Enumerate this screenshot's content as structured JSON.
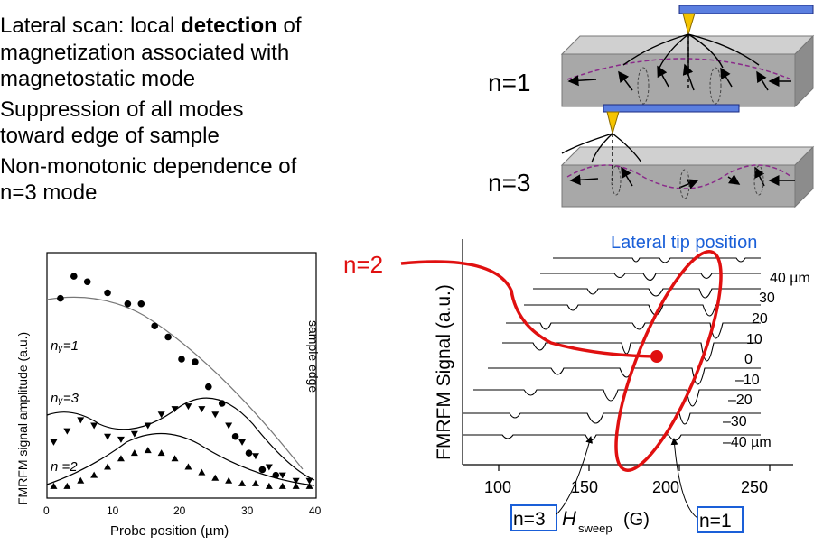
{
  "bullets": {
    "b1_l1_pre": "Lateral scan: local ",
    "b1_l1_bold": "detection",
    "b1_l1_post": " of",
    "b1_l2": "magnetization associated with",
    "b1_l3": "magnetostatic mode",
    "b2_l1": "Suppression of all modes",
    "b2_l2": "toward edge of sample",
    "b3_l1": "Non-monotonic dependence of",
    "b3_l2": "n=3 mode"
  },
  "modes": {
    "top": "n=1",
    "bottom": "n=3"
  },
  "colors": {
    "cantilever": "#5b7fe0",
    "tip": "#f5c400",
    "slab": "#a8a8a8",
    "dashed_profile": "#8a2a8a",
    "highlight": "#e01010",
    "blue_label": "#1a5fd8"
  },
  "left_plot": {
    "ylabel": "FMRFM signal amplitude  (a.u.)",
    "xlabel": "Probe position (µm)",
    "xticks": [
      "0",
      "10",
      "20",
      "30",
      "40"
    ],
    "side_label": "sample edge",
    "labels": {
      "n1": "nᵧ=1",
      "n3": "nᵧ=3",
      "n2": "n =2"
    }
  },
  "chart_data": {
    "type": "scatter",
    "xlim": [
      0,
      40
    ],
    "series": [
      {
        "name": "nᵧ=1",
        "x": [
          2,
          4,
          6,
          9,
          12,
          14,
          16,
          18,
          20,
          22,
          24,
          26,
          28,
          30,
          32,
          34
        ],
        "y": [
          70,
          78,
          76,
          72,
          68,
          68,
          60,
          56,
          48,
          47,
          38,
          32,
          20,
          14,
          8,
          6
        ]
      },
      {
        "name": "nᵧ=3",
        "x": [
          1,
          3,
          5,
          7,
          9,
          11,
          13,
          15,
          17,
          19,
          21,
          23,
          25,
          27,
          29,
          31,
          33,
          35,
          37,
          39
        ],
        "y": [
          18,
          22,
          26,
          24,
          20,
          19,
          21,
          24,
          28,
          30,
          31,
          30,
          28,
          24,
          18,
          13,
          9,
          6,
          4,
          4
        ]
      },
      {
        "name": "n =2",
        "x": [
          1,
          3,
          5,
          7,
          9,
          11,
          13,
          15,
          17,
          19,
          21,
          23,
          25,
          27,
          29,
          31,
          33,
          35,
          37,
          39
        ],
        "y": [
          2,
          2,
          4,
          6,
          9,
          12,
          14,
          15,
          14,
          12,
          9,
          7,
          5,
          4,
          3,
          3,
          2,
          2,
          2,
          2
        ]
      }
    ]
  },
  "right_plot": {
    "ylabel": "FMRFM Signal  (a.u.)",
    "title": "Lateral tip position",
    "n2_label": "n=2",
    "xticks": [
      "100",
      "150",
      "200",
      "250"
    ],
    "xlabel_h": "H",
    "xlabel_sub": "sweep",
    "xlabel_unit": "(G)",
    "trace_labels": [
      "40 µm",
      "30",
      "20",
      "10",
      "0",
      "–10",
      "–20",
      "–30",
      "–40 µm"
    ],
    "box_left": "n=3",
    "box_right": "n=1"
  }
}
